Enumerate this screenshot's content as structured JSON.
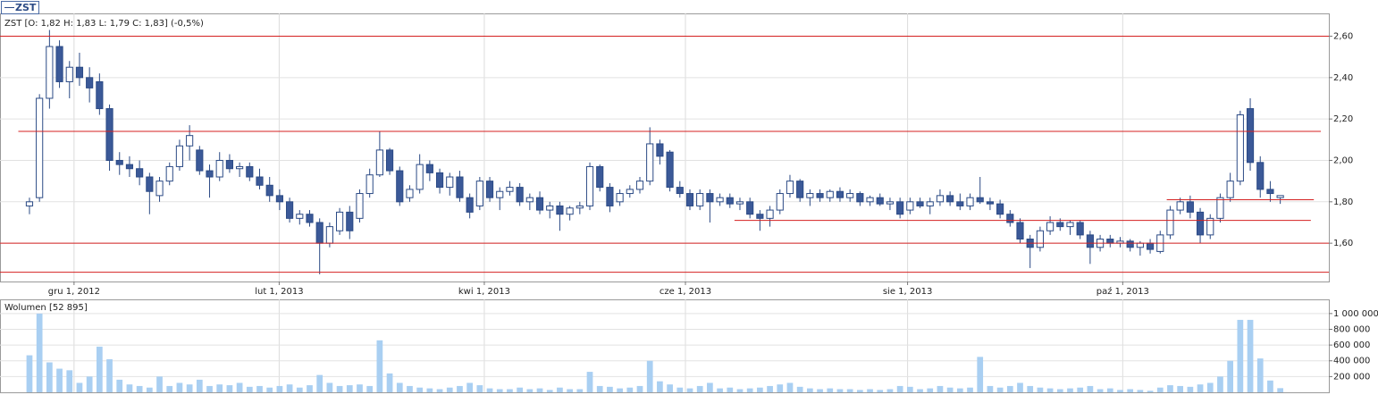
{
  "chart_data": [
    {
      "type": "candlestick",
      "legend": "ZST",
      "info": "ZST [O: 1,82  H: 1,83  L: 1,79  C: 1,83] (-0,5%)",
      "xlim": [
        -2.9,
        129.9
      ],
      "ylim": [
        1.415,
        2.71
      ],
      "grid": true,
      "xticks": [
        {
          "value": 4.5,
          "label": "gru 1, 2012"
        },
        {
          "value": 25,
          "label": "lut 1, 2013"
        },
        {
          "value": 45.5,
          "label": "kwi 1, 2013"
        },
        {
          "value": 65.6,
          "label": "cze 1, 2013"
        },
        {
          "value": 87.8,
          "label": "sie 1, 2013"
        },
        {
          "value": 109.3,
          "label": "paź 1, 2013"
        }
      ],
      "yticks": [
        {
          "value": 1.6,
          "label": "1,60"
        },
        {
          "value": 1.8,
          "label": "1,80"
        },
        {
          "value": 2.0,
          "label": "2,00"
        },
        {
          "value": 2.2,
          "label": "2,20"
        },
        {
          "value": 2.4,
          "label": "2,40"
        },
        {
          "value": 2.6,
          "label": "2,60"
        }
      ],
      "up_color": "#ffffff",
      "down_color": "#3b5998",
      "line_color": "#2b4a85",
      "hlines": [
        {
          "value": 2.6
        },
        {
          "value": 2.14,
          "start": -1.07,
          "end": 129.1
        },
        {
          "value": 1.6
        },
        {
          "value": 1.46
        },
        {
          "value": 1.71,
          "start": 70.5,
          "end": 128.1
        },
        {
          "value": 1.81,
          "start": 113.7,
          "end": 128.4
        }
      ],
      "hline_color": "#d42020",
      "open": [
        1.78,
        1.82,
        2.3,
        2.55,
        2.38,
        2.45,
        2.4,
        2.38,
        2.25,
        2.0,
        1.98,
        1.96,
        1.92,
        1.83,
        1.9,
        1.97,
        2.07,
        2.05,
        1.95,
        1.92,
        2.0,
        1.96,
        1.97,
        1.92,
        1.88,
        1.83,
        1.8,
        1.72,
        1.74,
        1.7,
        1.6,
        1.66,
        1.75,
        1.72,
        1.84,
        1.93,
        2.05,
        1.95,
        1.82,
        1.86,
        1.98,
        1.94,
        1.87,
        1.92,
        1.82,
        1.78,
        1.9,
        1.82,
        1.85,
        1.87,
        1.8,
        1.82,
        1.76,
        1.78,
        1.74,
        1.77,
        1.78,
        1.97,
        1.87,
        1.8,
        1.84,
        1.86,
        1.9,
        2.08,
        2.04,
        1.87,
        1.84,
        1.78,
        1.84,
        1.8,
        1.82,
        1.79,
        1.8,
        1.74,
        1.72,
        1.76,
        1.84,
        1.9,
        1.82,
        1.84,
        1.82,
        1.85,
        1.82,
        1.84,
        1.8,
        1.82,
        1.79,
        1.8,
        1.76,
        1.8,
        1.78,
        1.8,
        1.83,
        1.8,
        1.78,
        1.82,
        1.8,
        1.79,
        1.74,
        1.7,
        1.62,
        1.58,
        1.66,
        1.7,
        1.68,
        1.7,
        1.64,
        1.58,
        1.62,
        1.6,
        1.61,
        1.58,
        1.6,
        1.56,
        1.64,
        1.76,
        1.8,
        1.75,
        1.64,
        1.72,
        1.82,
        1.9,
        2.25,
        1.99,
        1.86,
        1.82
      ],
      "high": [
        1.82,
        2.32,
        2.63,
        2.58,
        2.48,
        2.52,
        2.45,
        2.42,
        2.27,
        2.04,
        2.02,
        2.0,
        1.94,
        1.92,
        1.99,
        2.1,
        2.17,
        2.07,
        1.98,
        2.04,
        2.03,
        1.99,
        1.99,
        1.96,
        1.92,
        1.86,
        1.82,
        1.76,
        1.76,
        1.72,
        1.7,
        1.77,
        1.78,
        1.86,
        1.96,
        2.14,
        2.06,
        1.97,
        1.88,
        2.03,
        2.0,
        1.96,
        1.94,
        1.95,
        1.84,
        1.92,
        1.92,
        1.87,
        1.9,
        1.89,
        1.84,
        1.85,
        1.8,
        1.8,
        1.78,
        1.8,
        1.99,
        1.98,
        1.89,
        1.86,
        1.88,
        1.92,
        2.16,
        2.1,
        2.05,
        1.9,
        1.86,
        1.86,
        1.86,
        1.84,
        1.84,
        1.82,
        1.82,
        1.76,
        1.78,
        1.86,
        1.93,
        1.91,
        1.86,
        1.86,
        1.86,
        1.87,
        1.86,
        1.85,
        1.83,
        1.84,
        1.82,
        1.82,
        1.82,
        1.82,
        1.82,
        1.86,
        1.85,
        1.84,
        1.84,
        1.92,
        1.82,
        1.81,
        1.76,
        1.72,
        1.64,
        1.68,
        1.73,
        1.72,
        1.71,
        1.71,
        1.66,
        1.64,
        1.64,
        1.63,
        1.62,
        1.61,
        1.62,
        1.66,
        1.78,
        1.82,
        1.83,
        1.77,
        1.74,
        1.84,
        1.94,
        2.24,
        2.3,
        2.02,
        1.9,
        1.83
      ],
      "low": [
        1.74,
        1.8,
        2.25,
        2.35,
        2.3,
        2.36,
        2.28,
        2.22,
        1.95,
        1.93,
        1.92,
        1.88,
        1.74,
        1.8,
        1.88,
        1.95,
        2.0,
        1.93,
        1.82,
        1.9,
        1.94,
        1.92,
        1.9,
        1.86,
        1.8,
        1.76,
        1.7,
        1.69,
        1.68,
        1.45,
        1.58,
        1.64,
        1.62,
        1.7,
        1.82,
        1.92,
        1.93,
        1.78,
        1.8,
        1.84,
        1.9,
        1.84,
        1.83,
        1.8,
        1.72,
        1.76,
        1.8,
        1.76,
        1.83,
        1.78,
        1.76,
        1.74,
        1.72,
        1.66,
        1.71,
        1.74,
        1.76,
        1.85,
        1.75,
        1.78,
        1.82,
        1.84,
        1.88,
        1.98,
        1.85,
        1.82,
        1.76,
        1.76,
        1.7,
        1.78,
        1.77,
        1.76,
        1.72,
        1.66,
        1.68,
        1.74,
        1.82,
        1.8,
        1.78,
        1.8,
        1.8,
        1.8,
        1.8,
        1.78,
        1.78,
        1.78,
        1.76,
        1.72,
        1.74,
        1.77,
        1.74,
        1.78,
        1.78,
        1.76,
        1.76,
        1.79,
        1.76,
        1.72,
        1.68,
        1.6,
        1.48,
        1.56,
        1.64,
        1.66,
        1.64,
        1.62,
        1.5,
        1.56,
        1.58,
        1.58,
        1.56,
        1.54,
        1.55,
        1.55,
        1.62,
        1.74,
        1.72,
        1.6,
        1.62,
        1.7,
        1.8,
        1.88,
        1.95,
        1.82,
        1.8,
        1.79
      ],
      "close": [
        1.8,
        2.3,
        2.55,
        2.38,
        2.45,
        2.4,
        2.35,
        2.25,
        2.0,
        1.98,
        1.96,
        1.92,
        1.85,
        1.9,
        1.97,
        2.07,
        2.12,
        1.95,
        1.92,
        2.0,
        1.96,
        1.97,
        1.92,
        1.88,
        1.83,
        1.8,
        1.72,
        1.74,
        1.7,
        1.6,
        1.68,
        1.75,
        1.66,
        1.84,
        1.93,
        2.05,
        1.95,
        1.8,
        1.86,
        1.98,
        1.94,
        1.87,
        1.92,
        1.82,
        1.75,
        1.9,
        1.82,
        1.85,
        1.87,
        1.8,
        1.82,
        1.76,
        1.78,
        1.74,
        1.77,
        1.78,
        1.97,
        1.87,
        1.78,
        1.84,
        1.86,
        1.9,
        2.08,
        2.02,
        1.87,
        1.84,
        1.78,
        1.84,
        1.8,
        1.82,
        1.79,
        1.8,
        1.74,
        1.72,
        1.76,
        1.84,
        1.9,
        1.82,
        1.84,
        1.82,
        1.85,
        1.82,
        1.84,
        1.8,
        1.82,
        1.79,
        1.8,
        1.74,
        1.8,
        1.78,
        1.8,
        1.83,
        1.8,
        1.78,
        1.82,
        1.8,
        1.79,
        1.74,
        1.7,
        1.62,
        1.58,
        1.66,
        1.7,
        1.68,
        1.7,
        1.64,
        1.58,
        1.62,
        1.6,
        1.61,
        1.58,
        1.6,
        1.57,
        1.64,
        1.76,
        1.8,
        1.75,
        1.64,
        1.72,
        1.82,
        1.9,
        2.22,
        1.99,
        1.86,
        1.84,
        1.83
      ]
    },
    {
      "type": "bar",
      "title": "Wolumen [52 895]",
      "color": "#a9cff2",
      "ylim": [
        0,
        1180000
      ],
      "yticks": [
        {
          "value": 200000,
          "label": "200 000"
        },
        {
          "value": 400000,
          "label": "400 000"
        },
        {
          "value": 600000,
          "label": "600 000"
        },
        {
          "value": 800000,
          "label": "800 000"
        },
        {
          "value": 1000000,
          "label": "1 000 000"
        }
      ],
      "values": [
        470000,
        1000000,
        380000,
        300000,
        280000,
        120000,
        200000,
        580000,
        420000,
        160000,
        100000,
        80000,
        60000,
        200000,
        80000,
        120000,
        100000,
        160000,
        80000,
        100000,
        90000,
        120000,
        70000,
        80000,
        60000,
        80000,
        100000,
        60000,
        90000,
        220000,
        120000,
        80000,
        90000,
        100000,
        80000,
        660000,
        240000,
        120000,
        80000,
        60000,
        50000,
        40000,
        60000,
        80000,
        120000,
        90000,
        50000,
        40000,
        40000,
        60000,
        40000,
        50000,
        30000,
        60000,
        40000,
        40000,
        260000,
        80000,
        70000,
        50000,
        60000,
        80000,
        400000,
        140000,
        100000,
        60000,
        50000,
        80000,
        120000,
        50000,
        60000,
        40000,
        50000,
        60000,
        80000,
        100000,
        120000,
        70000,
        50000,
        40000,
        50000,
        40000,
        40000,
        30000,
        40000,
        30000,
        40000,
        80000,
        70000,
        40000,
        50000,
        80000,
        60000,
        50000,
        60000,
        450000,
        80000,
        60000,
        80000,
        120000,
        80000,
        60000,
        50000,
        40000,
        50000,
        60000,
        80000,
        40000,
        50000,
        30000,
        40000,
        30000,
        20000,
        60000,
        90000,
        80000,
        70000,
        100000,
        120000,
        200000,
        400000,
        920000,
        920000,
        430000,
        150000,
        52895
      ]
    }
  ]
}
